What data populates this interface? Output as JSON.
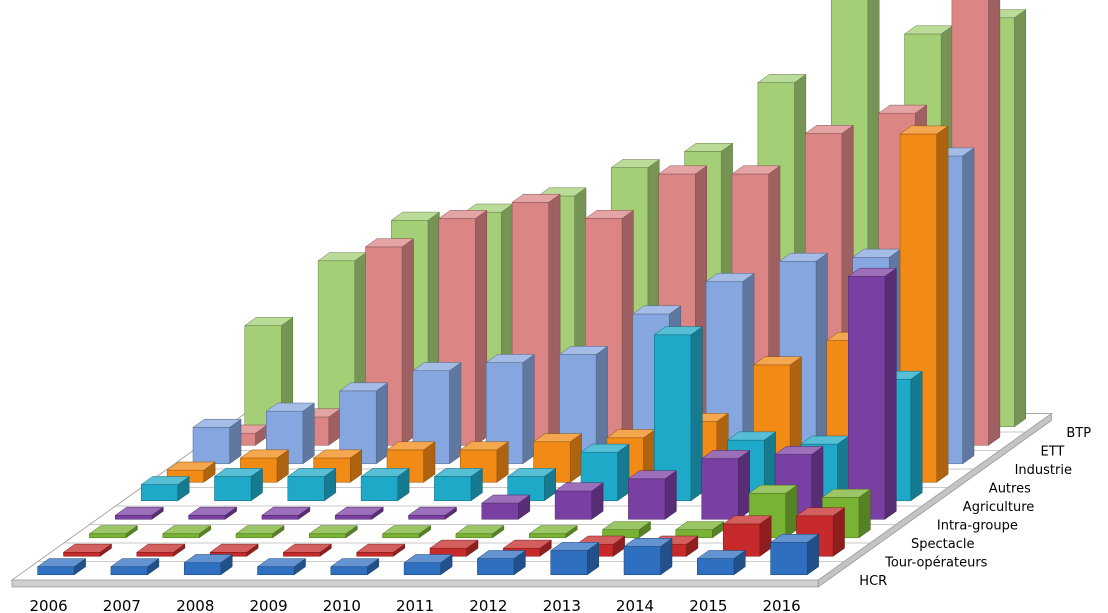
{
  "chart_data": {
    "type": "bar",
    "subtype": "3d-column",
    "x": [
      "2006",
      "2007",
      "2008",
      "2009",
      "2010",
      "2011",
      "2012",
      "2013",
      "2014",
      "2015",
      "2016"
    ],
    "series": [
      {
        "name": "HCR",
        "color": "#2f6fc0",
        "values": [
          0.2,
          0.2,
          0.3,
          0.2,
          0.2,
          0.3,
          0.4,
          0.6,
          0.7,
          0.4,
          0.8
        ]
      },
      {
        "name": "Tour-opérateurs",
        "color": "#c62a2a",
        "values": [
          0.1,
          0.1,
          0.1,
          0.1,
          0.1,
          0.2,
          0.2,
          0.3,
          0.3,
          0.8,
          1.0
        ]
      },
      {
        "name": "Spectacle",
        "color": "#79b333",
        "values": [
          0.1,
          0.1,
          0.1,
          0.1,
          0.1,
          0.1,
          0.1,
          0.2,
          0.2,
          1.1,
          1.0
        ]
      },
      {
        "name": "Intra-groupe",
        "color": "#7a3fa3",
        "values": [
          0.1,
          0.1,
          0.1,
          0.1,
          0.1,
          0.4,
          0.7,
          1.0,
          1.5,
          1.6,
          6.0
        ]
      },
      {
        "name": "Agriculture",
        "color": "#1ea9c8",
        "values": [
          0.4,
          0.6,
          0.6,
          0.6,
          0.6,
          0.6,
          1.2,
          4.1,
          1.5,
          1.4,
          3.0
        ]
      },
      {
        "name": "Autres",
        "color": "#f28a16",
        "values": [
          0.3,
          0.6,
          0.6,
          0.8,
          0.8,
          1.0,
          1.1,
          1.5,
          2.9,
          3.5,
          8.6
        ]
      },
      {
        "name": "Industrie",
        "color": "#85a6de",
        "values": [
          0.9,
          1.3,
          1.8,
          2.3,
          2.5,
          2.7,
          3.7,
          4.5,
          5.0,
          5.1,
          7.6
        ]
      },
      {
        "name": "ETT",
        "color": "#db8585",
        "values": [
          0.3,
          0.7,
          4.9,
          5.6,
          6.0,
          5.6,
          6.7,
          6.7,
          7.7,
          8.2,
          12.1
        ]
      },
      {
        "name": "BTP",
        "color": "#a4cf76",
        "values": [
          2.5,
          4.1,
          5.1,
          5.3,
          5.7,
          6.4,
          6.8,
          8.5,
          10.6,
          9.7,
          10.1
        ]
      }
    ],
    "ylim": [
      0,
      13
    ],
    "xlabel": "",
    "ylabel": "",
    "title": "",
    "legend": "none (series names as depth-axis labels on the right)",
    "grid": false
  }
}
